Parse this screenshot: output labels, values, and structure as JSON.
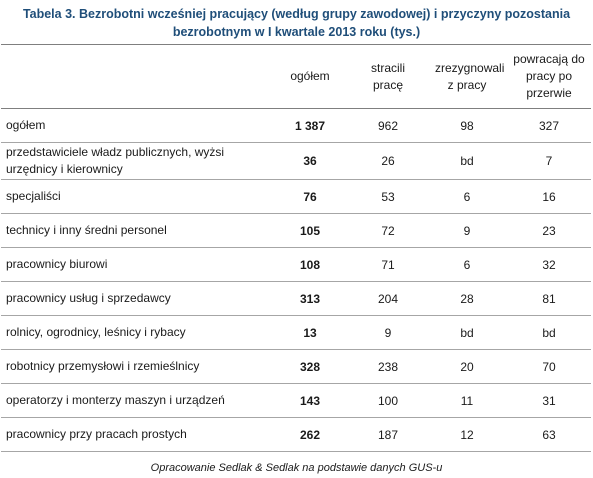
{
  "title": {
    "line1": "Tabela 3. Bezrobotni wcześniej pracujący (według grupy zawodowej) i przyczyny pozostania",
    "line2": "bezrobotnym w I kwartale 2013 roku (tys.)"
  },
  "table": {
    "headers": [
      "",
      "ogółem",
      "stracili pracę",
      "zrezygnowali z pracy",
      "powracają do pracy po przerwie"
    ],
    "rows": [
      {
        "name": "ogółem",
        "total": "1 387",
        "lost": "962",
        "resigned": "98",
        "returning": "327"
      },
      {
        "name": "przedstawiciele władz publicznych, wyżsi urzędnicy i kierownicy",
        "total": "36",
        "lost": "26",
        "resigned": "bd",
        "returning": "7"
      },
      {
        "name": "specjaliści",
        "total": "76",
        "lost": "53",
        "resigned": "6",
        "returning": "16"
      },
      {
        "name": "technicy i inny średni personel",
        "total": "105",
        "lost": "72",
        "resigned": "9",
        "returning": "23"
      },
      {
        "name": "pracownicy biurowi",
        "total": "108",
        "lost": "71",
        "resigned": "6",
        "returning": "32"
      },
      {
        "name": "pracownicy usług i sprzedawcy",
        "total": "313",
        "lost": "204",
        "resigned": "28",
        "returning": "81"
      },
      {
        "name": "rolnicy, ogrodnicy, leśnicy i rybacy",
        "total": "13",
        "lost": "9",
        "resigned": "bd",
        "returning": "bd"
      },
      {
        "name": "robotnicy przemysłowi i rzemieślnicy",
        "total": "328",
        "lost": "238",
        "resigned": "20",
        "returning": "70"
      },
      {
        "name": "operatorzy i monterzy maszyn i urządzeń",
        "total": "143",
        "lost": "100",
        "resigned": "11",
        "returning": "31"
      },
      {
        "name": "pracownicy przy pracach prostych",
        "total": "262",
        "lost": "187",
        "resigned": "12",
        "returning": "63"
      }
    ]
  },
  "footer": "Opracowanie Sedlak & Sedlak na podstawie danych GUS-u"
}
